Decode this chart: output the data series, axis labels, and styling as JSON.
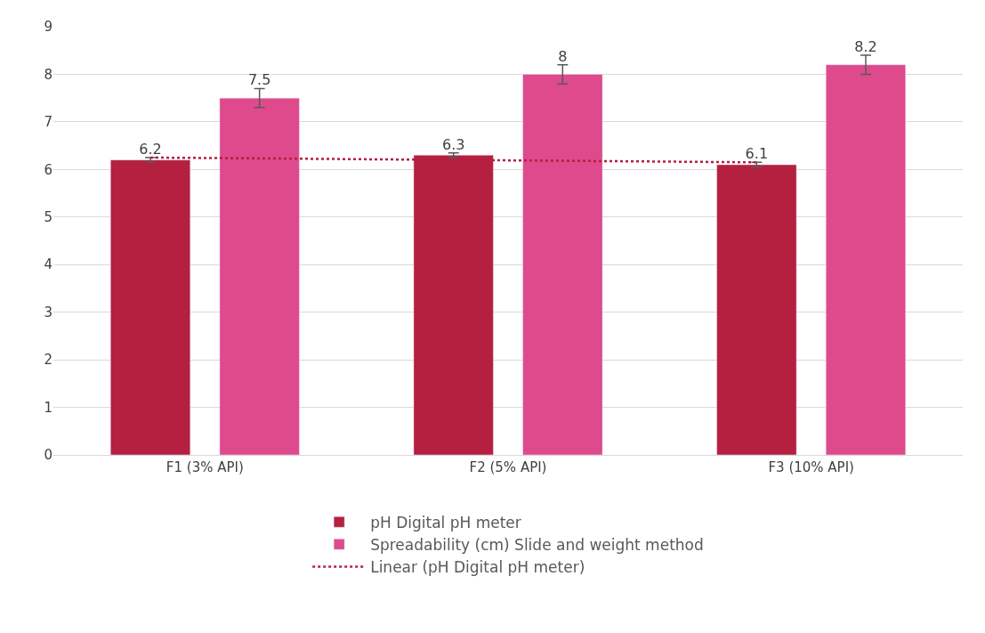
{
  "chart_data": {
    "type": "bar",
    "categories": [
      "F1 (3% API)",
      "F2 (5% API)",
      "F3 (10% API)"
    ],
    "series": [
      {
        "name": "pH Digital pH meter",
        "color": "#b51f40",
        "values": [
          6.2,
          6.3,
          6.1
        ],
        "errors": [
          0.05,
          0.05,
          0.05
        ],
        "value_labels": [
          "6.2",
          "6.3",
          "6.1"
        ]
      },
      {
        "name": "Spreadability (cm) Slide and weight method",
        "color": "#de4a8c",
        "values": [
          7.5,
          8,
          8.2
        ],
        "errors": [
          0.2,
          0.2,
          0.2
        ],
        "value_labels": [
          "7.5",
          "8",
          "8.2"
        ]
      },
      {
        "name": "Linear (pH Digital pH meter)",
        "type": "line",
        "line_style": "dotted",
        "marker": "none",
        "color": "#b51f40",
        "x": [
          "F1 (3% API)",
          "F3 (10% API)"
        ],
        "values": [
          6.25,
          6.15
        ]
      }
    ],
    "ylim": [
      0,
      9
    ],
    "yticks": [
      0,
      1,
      2,
      3,
      4,
      5,
      6,
      7,
      8,
      9
    ],
    "grid": "y",
    "legend": "bottom"
  }
}
